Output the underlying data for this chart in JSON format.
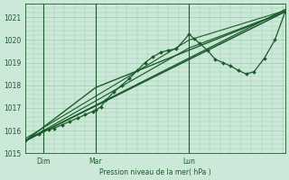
{
  "bg_color": "#cce8d8",
  "grid_color": "#99ccaa",
  "line_color": "#1a5c28",
  "ylabel": "Pression niveau de la mer( hPa )",
  "ylim": [
    1015.0,
    1021.6
  ],
  "yticks": [
    1015,
    1016,
    1017,
    1018,
    1019,
    1020,
    1021
  ],
  "xtick_labels": [
    "Dim",
    "Mar",
    "Lun"
  ],
  "xtick_pos": [
    0.07,
    0.27,
    0.63
  ],
  "vline_pos": [
    0.07,
    0.27,
    0.63
  ],
  "series": [
    {
      "x": [
        0.0,
        0.025,
        0.05,
        0.07,
        0.09,
        0.11,
        0.14,
        0.17,
        0.2,
        0.23,
        0.26,
        0.27,
        0.29,
        0.31,
        0.34,
        0.37,
        0.4,
        0.43,
        0.46,
        0.49,
        0.52,
        0.55,
        0.58,
        0.63,
        0.65,
        0.67,
        0.7,
        0.73,
        0.76,
        0.79,
        0.82,
        0.85,
        0.88,
        0.92,
        0.96,
        1.0
      ],
      "y": [
        1015.55,
        1015.75,
        1015.85,
        1016.0,
        1016.05,
        1016.1,
        1016.25,
        1016.4,
        1016.55,
        1016.7,
        1016.85,
        1016.9,
        1017.05,
        1017.35,
        1017.7,
        1018.0,
        1018.3,
        1018.65,
        1019.0,
        1019.25,
        1019.45,
        1019.55,
        1019.6,
        1020.25,
        1020.05,
        1019.85,
        1019.55,
        1019.15,
        1019.0,
        1018.85,
        1018.65,
        1018.5,
        1018.6,
        1019.2,
        1020.0,
        1021.25
      ],
      "marker": "D",
      "markersize": 2.0,
      "linewidth": 0.9,
      "zorder": 5
    },
    {
      "x": [
        0.0,
        1.0
      ],
      "y": [
        1015.55,
        1021.25
      ],
      "marker": null,
      "linewidth": 1.1,
      "zorder": 3
    },
    {
      "x": [
        0.0,
        1.0
      ],
      "y": [
        1015.55,
        1021.35
      ],
      "marker": null,
      "linewidth": 0.9,
      "zorder": 3
    },
    {
      "x": [
        0.0,
        0.27,
        1.0
      ],
      "y": [
        1015.55,
        1017.9,
        1021.25
      ],
      "marker": null,
      "linewidth": 1.0,
      "zorder": 3
    },
    {
      "x": [
        0.0,
        0.63,
        1.0
      ],
      "y": [
        1015.55,
        1019.65,
        1021.25
      ],
      "marker": null,
      "linewidth": 0.85,
      "zorder": 3
    },
    {
      "x": [
        0.0,
        0.63,
        1.0
      ],
      "y": [
        1015.65,
        1020.0,
        1021.3
      ],
      "marker": null,
      "linewidth": 0.8,
      "zorder": 3
    }
  ]
}
